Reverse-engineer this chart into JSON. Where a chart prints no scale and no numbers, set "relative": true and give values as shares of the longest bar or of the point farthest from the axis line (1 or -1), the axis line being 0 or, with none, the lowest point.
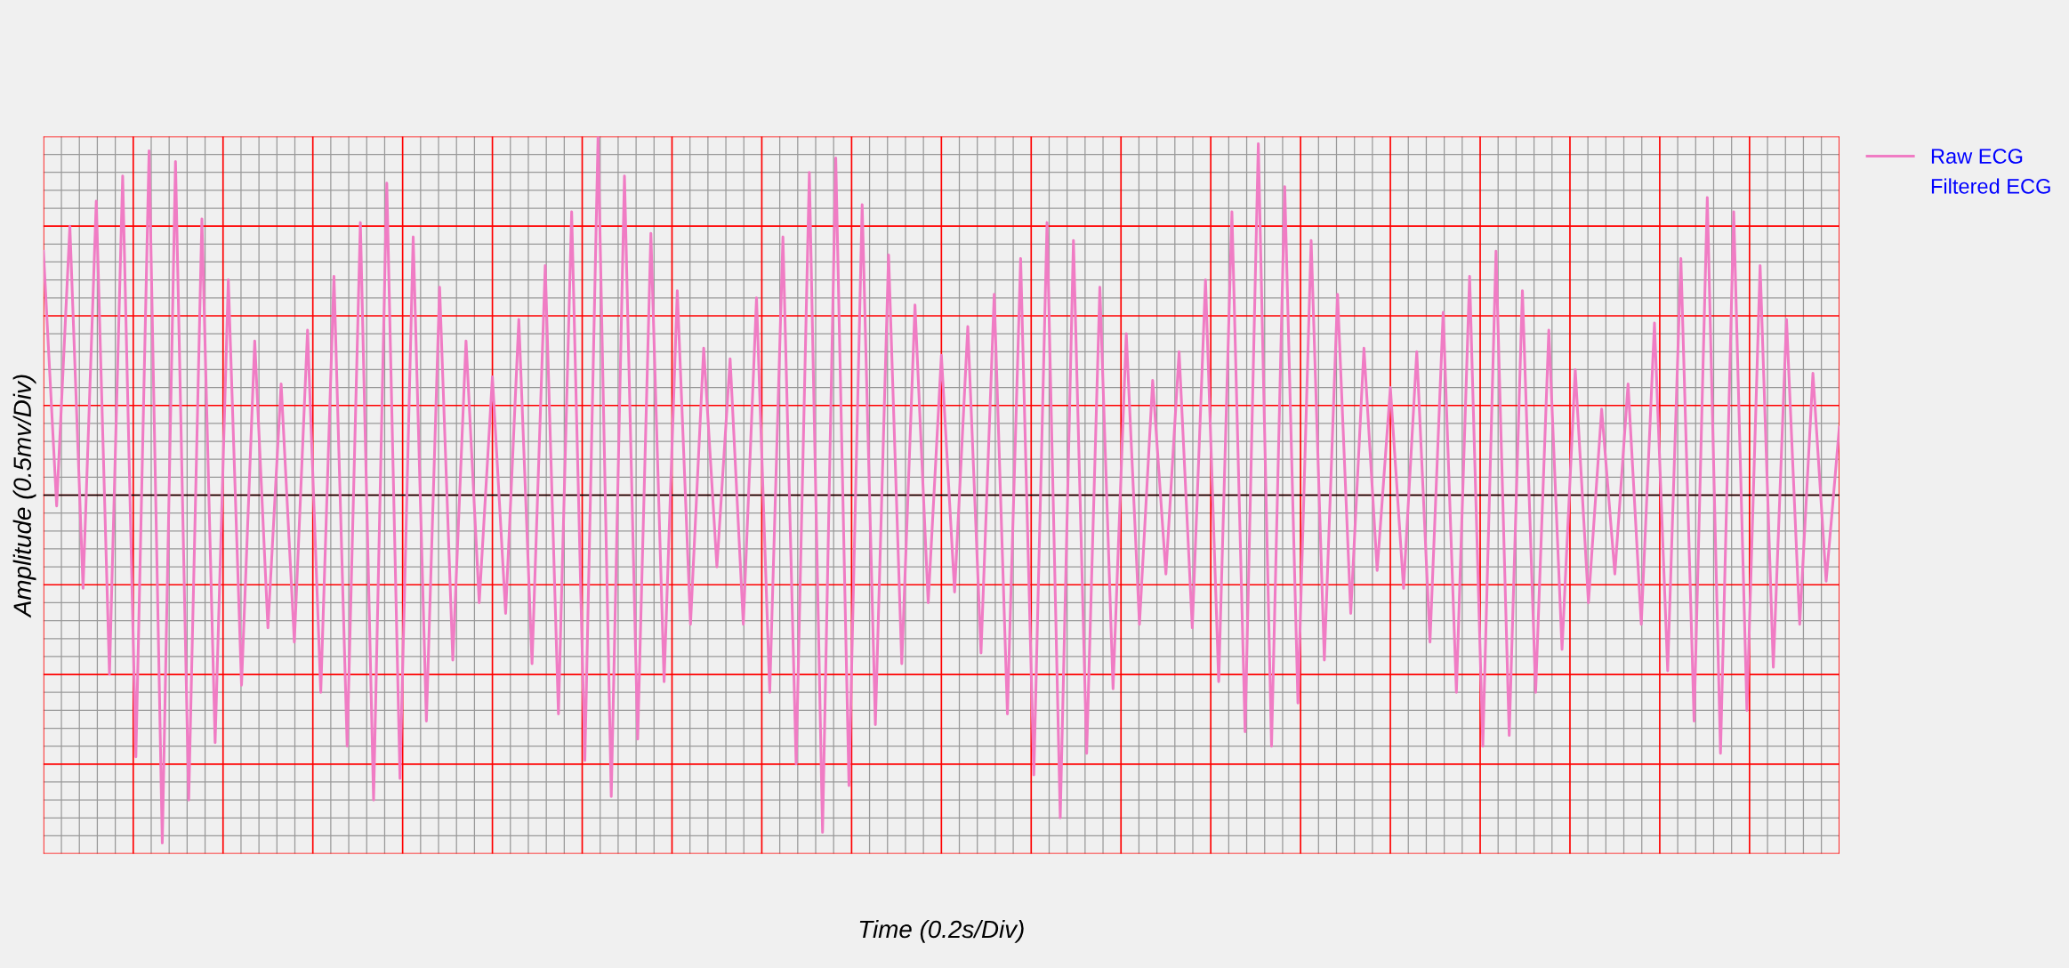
{
  "chart_data": {
    "type": "line",
    "relative": true,
    "xlabel": "Time (0.2s/Div)",
    "ylabel": "Amplitude (0.5mv/Div)",
    "grid": true,
    "legend": "top right",
    "marker": "none",
    "line_style": "solid",
    "categories": [
      null,
      null,
      null,
      null,
      null,
      null,
      null,
      null,
      null,
      null,
      null,
      null,
      null,
      null,
      null,
      null,
      null,
      null,
      null,
      null,
      null,
      null,
      null,
      null,
      null,
      null,
      null,
      null,
      null,
      null,
      null,
      null,
      null,
      null,
      null,
      null,
      null,
      null,
      null,
      null,
      null,
      null,
      null,
      null,
      null,
      null,
      null,
      null,
      null,
      null,
      null,
      null,
      null,
      null,
      null,
      null,
      null,
      null,
      null,
      null,
      null,
      null,
      null,
      null,
      null,
      null,
      null,
      null,
      null,
      null,
      null,
      null,
      null,
      null,
      null,
      null,
      null,
      null,
      null,
      null,
      null,
      null,
      null,
      null,
      null,
      null,
      null,
      null,
      null,
      null,
      null,
      null,
      null,
      null,
      null,
      null,
      null,
      null,
      null,
      null,
      null,
      null,
      null,
      null,
      null,
      null,
      null,
      null,
      null,
      null,
      null,
      null,
      null,
      null,
      null,
      null,
      null,
      null,
      null,
      null,
      null,
      null,
      null,
      null,
      null,
      null,
      null,
      null,
      null,
      null,
      null,
      null,
      null,
      null,
      null,
      null,
      null
    ],
    "series": [
      {
        "name": "Raw ECG",
        "color": "#f07cc4",
        "values": [
          0.68,
          -0.03,
          0.75,
          -0.26,
          0.82,
          -0.5,
          0.89,
          -0.73,
          0.96,
          -0.97,
          0.93,
          -0.85,
          0.77,
          -0.69,
          0.6,
          -0.53,
          0.43,
          -0.37,
          0.31,
          -0.41,
          0.46,
          -0.55,
          0.61,
          -0.7,
          0.76,
          -0.85,
          0.87,
          -0.79,
          0.72,
          -0.63,
          0.58,
          -0.46,
          0.43,
          -0.3,
          0.33,
          -0.33,
          0.49,
          -0.47,
          0.64,
          -0.61,
          0.79,
          -0.74,
          1.0,
          -0.84,
          0.89,
          -0.68,
          0.73,
          -0.52,
          0.57,
          -0.36,
          0.41,
          -0.2,
          0.38,
          -0.36,
          0.55,
          -0.55,
          0.72,
          -0.75,
          0.9,
          -0.94,
          0.94,
          -0.81,
          0.81,
          -0.64,
          0.67,
          -0.47,
          0.53,
          -0.3,
          0.39,
          -0.27,
          0.47,
          -0.44,
          0.56,
          -0.61,
          0.66,
          -0.78,
          0.76,
          -0.9,
          0.71,
          -0.72,
          0.58,
          -0.54,
          0.45,
          -0.36,
          0.32,
          -0.22,
          0.4,
          -0.37,
          0.6,
          -0.52,
          0.79,
          -0.66,
          0.98,
          -0.7,
          0.86,
          -0.58,
          0.71,
          -0.46,
          0.56,
          -0.33,
          0.41,
          -0.21,
          0.3,
          -0.26,
          0.4,
          -0.41,
          0.51,
          -0.55,
          0.61,
          -0.7,
          0.68,
          -0.67,
          0.57,
          -0.55,
          0.46,
          -0.43,
          0.35,
          -0.3,
          0.24,
          -0.22,
          0.31,
          -0.36,
          0.48,
          -0.49,
          0.66,
          -0.63,
          0.83,
          -0.72,
          0.79,
          -0.6,
          0.64,
          -0.48,
          0.49,
          -0.36,
          0.34,
          -0.24,
          0.19
        ]
      },
      {
        "name": "Filtered ECG",
        "color": null,
        "values": [
          null,
          null,
          null,
          null,
          null,
          null,
          null,
          null,
          null,
          null,
          null,
          null,
          null,
          null,
          null,
          null,
          null,
          null,
          null,
          null,
          null,
          null,
          null,
          null,
          null,
          null,
          null,
          null,
          null,
          null,
          null,
          null,
          null,
          null,
          null,
          null,
          null,
          null,
          null,
          null,
          null,
          null,
          null,
          null,
          null,
          null,
          null,
          null,
          null,
          null,
          null,
          null,
          null,
          null,
          null,
          null,
          null,
          null,
          null,
          null,
          null,
          null,
          null,
          null,
          null,
          null,
          null,
          null,
          null,
          null,
          null,
          null,
          null,
          null,
          null,
          null,
          null,
          null,
          null,
          null,
          null,
          null,
          null,
          null,
          null,
          null,
          null,
          null,
          null,
          null,
          null,
          null,
          null,
          null,
          null,
          null,
          null,
          null,
          null,
          null,
          null,
          null,
          null,
          null,
          null,
          null,
          null,
          null,
          null,
          null,
          null,
          null,
          null,
          null,
          null,
          null,
          null,
          null,
          null,
          null,
          null,
          null,
          null,
          null,
          null,
          null,
          null,
          null,
          null,
          null,
          null,
          null,
          null,
          null,
          null,
          null,
          null
        ]
      }
    ]
  }
}
